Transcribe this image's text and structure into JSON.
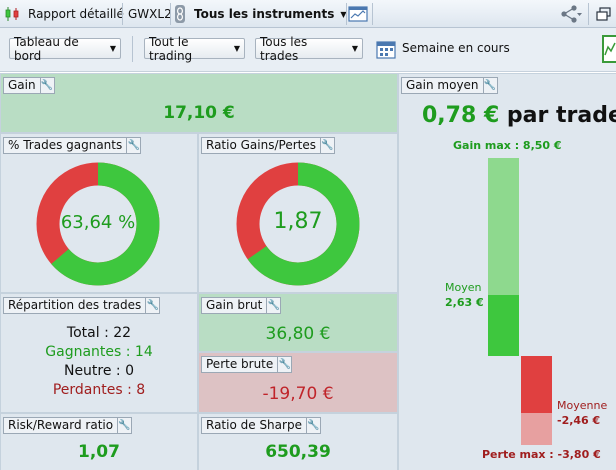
{
  "titlebar": {
    "report_label": "Rapport détaillé",
    "account_label": "GWXL2",
    "instruments_label": "Tous les instruments"
  },
  "toolbar": {
    "dashboard_label": "Tableau de bord",
    "trading_label": "Tout le trading",
    "trades_label": "Tous les trades",
    "period_label": "Semaine en cours"
  },
  "panels": {
    "gain": {
      "title": "Gain",
      "value": "17,10 €"
    },
    "winning_trades": {
      "title": "% Trades gagnants",
      "value": "63,64 %",
      "fraction": 0.6364
    },
    "gain_loss_ratio": {
      "title": "Ratio Gains/Pertes",
      "value": "1,87",
      "fraction": 0.6516
    },
    "distribution": {
      "title": "Répartition des trades",
      "total": "Total : 22",
      "winners": "Gagnantes : 14",
      "neutral": "Neutre : 0",
      "losers": "Perdantes : 8"
    },
    "gross_gain": {
      "title": "Gain brut",
      "value": "36,80 €"
    },
    "gross_loss": {
      "title": "Perte brute",
      "value": "-19,70 €"
    },
    "risk_reward": {
      "title": "Risk/Reward ratio",
      "value": "1,07"
    },
    "sharpe": {
      "title": "Ratio de Sharpe",
      "value": "650,39"
    },
    "avg_gain": {
      "title": "Gain moyen",
      "value": "0,78 €",
      "suffix": "par trade",
      "max_gain_label": "Gain max : 8,50 €",
      "avg_gain_word": "Moyen",
      "avg_gain_value": "2,63 €",
      "avg_loss_word": "Moyenne",
      "avg_loss_value": "-2,46 €",
      "max_loss_label": "Perte max : -3,80 €",
      "max_gain": 8.5,
      "avg_gain_num": 2.63,
      "max_loss": 3.8,
      "avg_loss_num": 2.46
    }
  },
  "colors": {
    "green": "#3ec73e",
    "red": "#e04040",
    "light_green": "#8ed98e",
    "light_red": "#e7a0a0"
  }
}
